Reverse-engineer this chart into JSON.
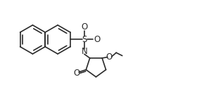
{
  "bg_color": "#ffffff",
  "line_color": "#2a2a2a",
  "line_width": 1.2,
  "fig_width": 2.9,
  "fig_height": 1.3,
  "dpi": 100,
  "xlim": [
    0,
    10
  ],
  "ylim": [
    0,
    4.5
  ]
}
